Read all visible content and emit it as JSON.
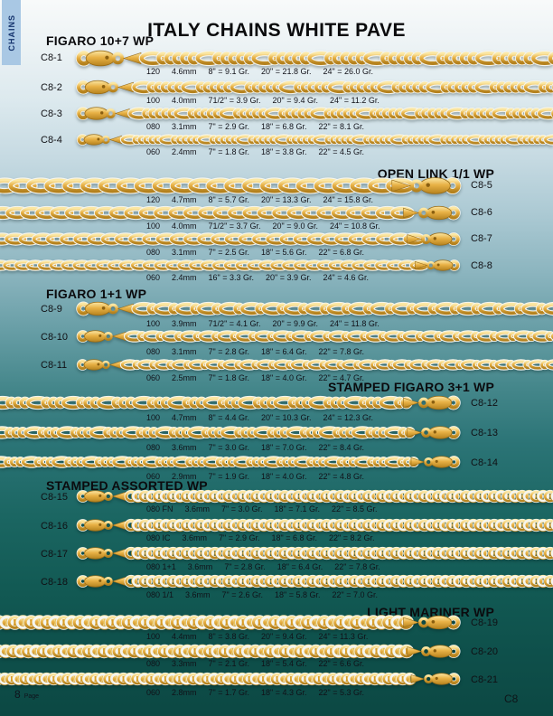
{
  "page": {
    "tab": "CHAINS",
    "title": "ITALY CHAINS WHITE PAVE",
    "page_number": "8",
    "page_label": "Page",
    "page_code": "C8",
    "colors": {
      "gold": "#e8b145",
      "gold_dark": "#b5821e",
      "pave_white": "#f4f5ef",
      "background_top": "#f8fafa",
      "background_bottom": "#0c4843",
      "tab_blue": "#a9c8e4"
    }
  },
  "sections": [
    {
      "header": "FIGARO 10+7 WP",
      "chain_style": "figaro107",
      "rows": [
        {
          "code": "C8-1",
          "size": "120",
          "mm": "4.6mm",
          "weights": [
            "8\" = 9.1 Gr.",
            "20\" = 21.8 Gr.",
            "24\" = 26.0 Gr."
          ]
        },
        {
          "code": "C8-2",
          "size": "100",
          "mm": "4.0mm",
          "weights": [
            "71/2\" = 3.9 Gr.",
            "20\" = 9.4 Gr.",
            "24\" = 11.2 Gr."
          ]
        },
        {
          "code": "C8-3",
          "size": "080",
          "mm": "3.1mm",
          "weights": [
            "7\" = 2.9 Gr.",
            "18\" = 6.8 Gr.",
            "22\" = 8.1 Gr."
          ]
        },
        {
          "code": "C8-4",
          "size": "060",
          "mm": "2.4mm",
          "weights": [
            "7\" = 1.8 Gr.",
            "18\" = 3.8 Gr.",
            "22\" = 4.5 Gr."
          ]
        }
      ]
    },
    {
      "header": "OPEN LINK 1/1 WP",
      "chain_style": "open",
      "rows": [
        {
          "code": "C8-5",
          "size": "120",
          "mm": "4.7mm",
          "weights": [
            "8\" = 5.7 Gr.",
            "20\" = 13.3 Gr.",
            "24\" = 15.8 Gr."
          ]
        },
        {
          "code": "C8-6",
          "size": "100",
          "mm": "4.0mm",
          "weights": [
            "71/2\" = 3.7 Gr.",
            "20\" = 9.0 Gr.",
            "24\" = 10.8 Gr."
          ]
        },
        {
          "code": "C8-7",
          "size": "080",
          "mm": "3.1mm",
          "weights": [
            "7\" = 2.5 Gr.",
            "18\" = 5.6 Gr.",
            "22\" = 6.8 Gr."
          ]
        },
        {
          "code": "C8-8",
          "size": "060",
          "mm": "2.4mm",
          "weights": [
            "16\" = 3.3 Gr.",
            "20\" = 3.9 Gr.",
            "24\" = 4.6 Gr."
          ]
        }
      ]
    },
    {
      "header": "FIGARO 1+1 WP",
      "chain_style": "figaro11",
      "rows": [
        {
          "code": "C8-9",
          "size": "100",
          "mm": "3.9mm",
          "weights": [
            "71/2\" = 4.1 Gr.",
            "20\" = 9.9 Gr.",
            "24\" = 11.8 Gr."
          ]
        },
        {
          "code": "C8-10",
          "size": "080",
          "mm": "3.1mm",
          "weights": [
            "7\" = 2.8 Gr.",
            "18\" = 6.4 Gr.",
            "22\" = 7.8 Gr."
          ]
        },
        {
          "code": "C8-11",
          "size": "060",
          "mm": "2.5mm",
          "weights": [
            "7\" = 1.8 Gr.",
            "18\" = 4.0 Gr.",
            "22\" = 4.7 Gr."
          ]
        }
      ]
    },
    {
      "header": "STAMPED FIGARO 3+1 WP",
      "chain_style": "figaro31",
      "rows": [
        {
          "code": "C8-12",
          "size": "100",
          "mm": "4.7mm",
          "weights": [
            "8\" = 4.4 Gr.",
            "20\" = 10.3 Gr.",
            "24\" = 12.3 Gr."
          ]
        },
        {
          "code": "C8-13",
          "size": "080",
          "mm": "3.6mm",
          "weights": [
            "7\" = 3.0 Gr.",
            "18\" = 7.0 Gr.",
            "22\" = 8.4 Gr."
          ]
        },
        {
          "code": "C8-14",
          "size": "060",
          "mm": "2.9mm",
          "weights": [
            "7\" = 1.9 Gr.",
            "18\" = 4.0 Gr.",
            "22\" = 4.8 Gr."
          ]
        }
      ]
    },
    {
      "header": "STAMPED ASSORTED WP",
      "chain_style": "stamped",
      "rows": [
        {
          "code": "C8-15",
          "size": "080 FN",
          "mm": "3.6mm",
          "weights": [
            "7\" = 3.0 Gr.",
            "18\" = 7.1 Gr.",
            "22\" = 8.5 Gr."
          ]
        },
        {
          "code": "C8-16",
          "size": "080 IC",
          "mm": "3.6mm",
          "weights": [
            "7\" = 2.9 Gr.",
            "18\" = 6.8 Gr.",
            "22\" = 8.2 Gr."
          ]
        },
        {
          "code": "C8-17",
          "size": "080 1+1",
          "mm": "3.6mm",
          "weights": [
            "7\" = 2.8 Gr.",
            "18\" = 6.4 Gr.",
            "22\" = 7.8 Gr."
          ]
        },
        {
          "code": "C8-18",
          "size": "080 1/1",
          "mm": "3.6mm",
          "weights": [
            "7\" = 2.6 Gr.",
            "18\" = 5.8 Gr.",
            "22\" = 7.0 Gr."
          ]
        }
      ]
    },
    {
      "header": "LIGHT MARINER WP",
      "chain_style": "mariner",
      "rows": [
        {
          "code": "C8-19",
          "size": "100",
          "mm": "4.4mm",
          "weights": [
            "8\" = 3.8 Gr.",
            "20\" = 9.4 Gr.",
            "24\" = 11.3 Gr."
          ]
        },
        {
          "code": "C8-20",
          "size": "080",
          "mm": "3.3mm",
          "weights": [
            "7\" = 2.1 Gr.",
            "18\" = 5.4 Gr.",
            "22\" = 6.6 Gr."
          ]
        },
        {
          "code": "C8-21",
          "size": "060",
          "mm": "2.8mm",
          "weights": [
            "7\" = 1.7 Gr.",
            "18\" = 4.3 Gr.",
            "22\" = 5.3 Gr."
          ]
        }
      ]
    }
  ]
}
